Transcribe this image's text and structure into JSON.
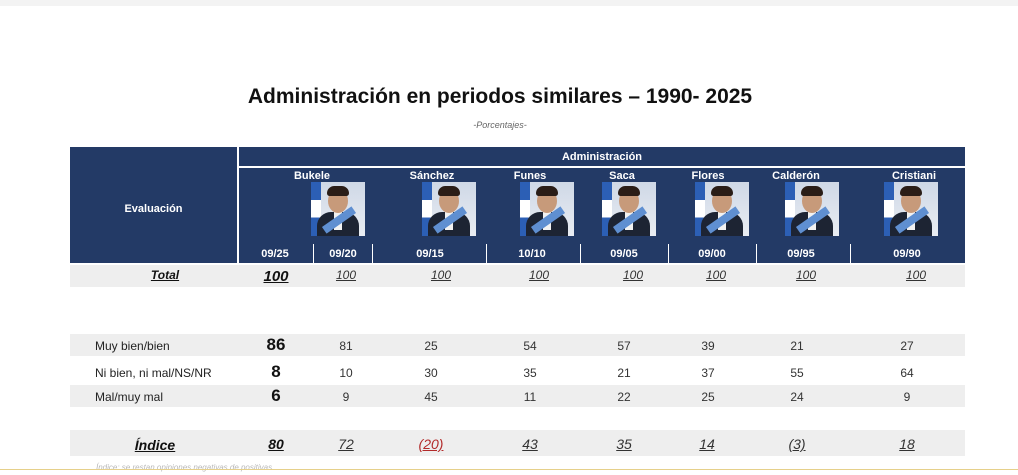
{
  "title": "Administración en periodos similares – 1990- 2025",
  "subtitle": "-Porcentajes-",
  "header": {
    "evaluation_label": "Evaluación",
    "administration_label": "Administración"
  },
  "presidents": [
    {
      "name": "Bukele",
      "dates": [
        "09/25",
        "09/20"
      ]
    },
    {
      "name": "Sánchez",
      "dates": [
        "09/15"
      ]
    },
    {
      "name": "Funes",
      "dates": [
        "10/10"
      ]
    },
    {
      "name": "Saca",
      "dates": [
        "09/05"
      ]
    },
    {
      "name": "Flores",
      "dates": [
        "09/00"
      ]
    },
    {
      "name": "Calderón",
      "dates": [
        "09/95"
      ]
    },
    {
      "name": "Cristiani",
      "dates": [
        "09/90"
      ]
    }
  ],
  "rows": {
    "total": {
      "label": "Total",
      "values": [
        "100",
        "100",
        "100",
        "100",
        "100",
        "100",
        "100",
        "100"
      ]
    },
    "muy_bien": {
      "label": "Muy bien/bien",
      "values": [
        "86",
        "81",
        "25",
        "54",
        "57",
        "39",
        "21",
        "27"
      ]
    },
    "ni_bien": {
      "label": "Ni bien, ni mal/NS/NR",
      "values": [
        "8",
        "10",
        "30",
        "35",
        "21",
        "37",
        "55",
        "64"
      ]
    },
    "mal": {
      "label": "Mal/muy mal",
      "values": [
        "6",
        "9",
        "45",
        "11",
        "22",
        "25",
        "24",
        "9"
      ]
    },
    "indice": {
      "label": "Índice",
      "values": [
        "80",
        "72",
        "(20)",
        "43",
        "35",
        "14",
        "(3)",
        "18"
      ]
    }
  },
  "footnote": "Índice: se restan opiniones negativas de positivas."
}
